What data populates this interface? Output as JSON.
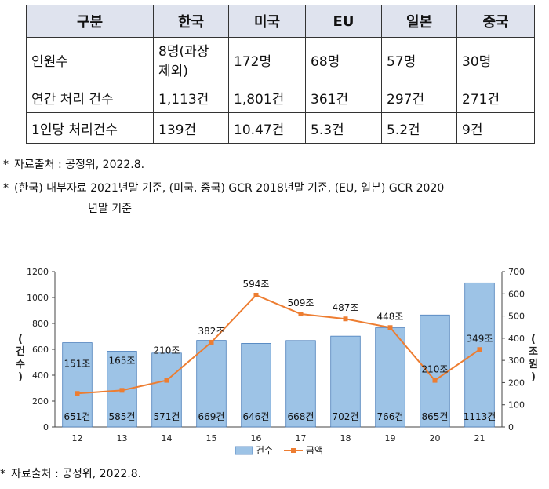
{
  "table": {
    "headers": [
      "구분",
      "한국",
      "미국",
      "EU",
      "일본",
      "중국"
    ],
    "rows": [
      [
        "인원수",
        "8명(과장 제외)",
        "172명",
        "68명",
        "57명",
        "30명"
      ],
      [
        "연간 처리 건수",
        "1,113건",
        "1,801건",
        "361건",
        "297건",
        "271건"
      ],
      [
        "1인당 처리건수",
        "139건",
        "10.47건",
        "5.3건",
        "5.2건",
        "9건"
      ]
    ]
  },
  "notes": {
    "star": "*",
    "source1": "자료출처 : 공정위, 2022.8.",
    "basis_line1": "(한국) 내부자료 2021년말 기준, (미국, 중국) GCR 2018년말 기준, (EU, 일본) GCR 2020",
    "basis_line2": "년말 기준",
    "source2": "자료출처 : 공정위, 2022.8."
  },
  "chart_data": {
    "type": "bar",
    "categories": [
      "12",
      "13",
      "14",
      "15",
      "16",
      "17",
      "18",
      "19",
      "20",
      "21"
    ],
    "series": [
      {
        "name": "건수",
        "type": "bar",
        "axis": "left",
        "values": [
          651,
          585,
          571,
          669,
          646,
          668,
          702,
          766,
          865,
          1113
        ],
        "labels": [
          "651건",
          "585건",
          "571건",
          "669건",
          "646건",
          "668건",
          "702건",
          "766건",
          "865건",
          "1113건"
        ],
        "color": "#9dc3e6"
      },
      {
        "name": "금액",
        "type": "line",
        "axis": "right",
        "values": [
          151,
          165,
          210,
          382,
          594,
          509,
          487,
          448,
          210,
          349
        ],
        "labels": [
          "151조",
          "165조",
          "210조",
          "382조",
          "594조",
          "509조",
          "487조",
          "448조",
          "210조",
          "349조"
        ],
        "color": "#ed7d31"
      }
    ],
    "left_axis": {
      "label": "건수",
      "range": [
        0,
        1200
      ],
      "ticks": [
        "0",
        "200",
        "400",
        "600",
        "800",
        "1000",
        "1200"
      ]
    },
    "right_axis": {
      "label": "조원",
      "range": [
        0,
        700
      ],
      "ticks": [
        "0",
        "100",
        "200",
        "300",
        "400",
        "500",
        "600",
        "700"
      ]
    },
    "legend_position": "bottom",
    "grid": false
  }
}
